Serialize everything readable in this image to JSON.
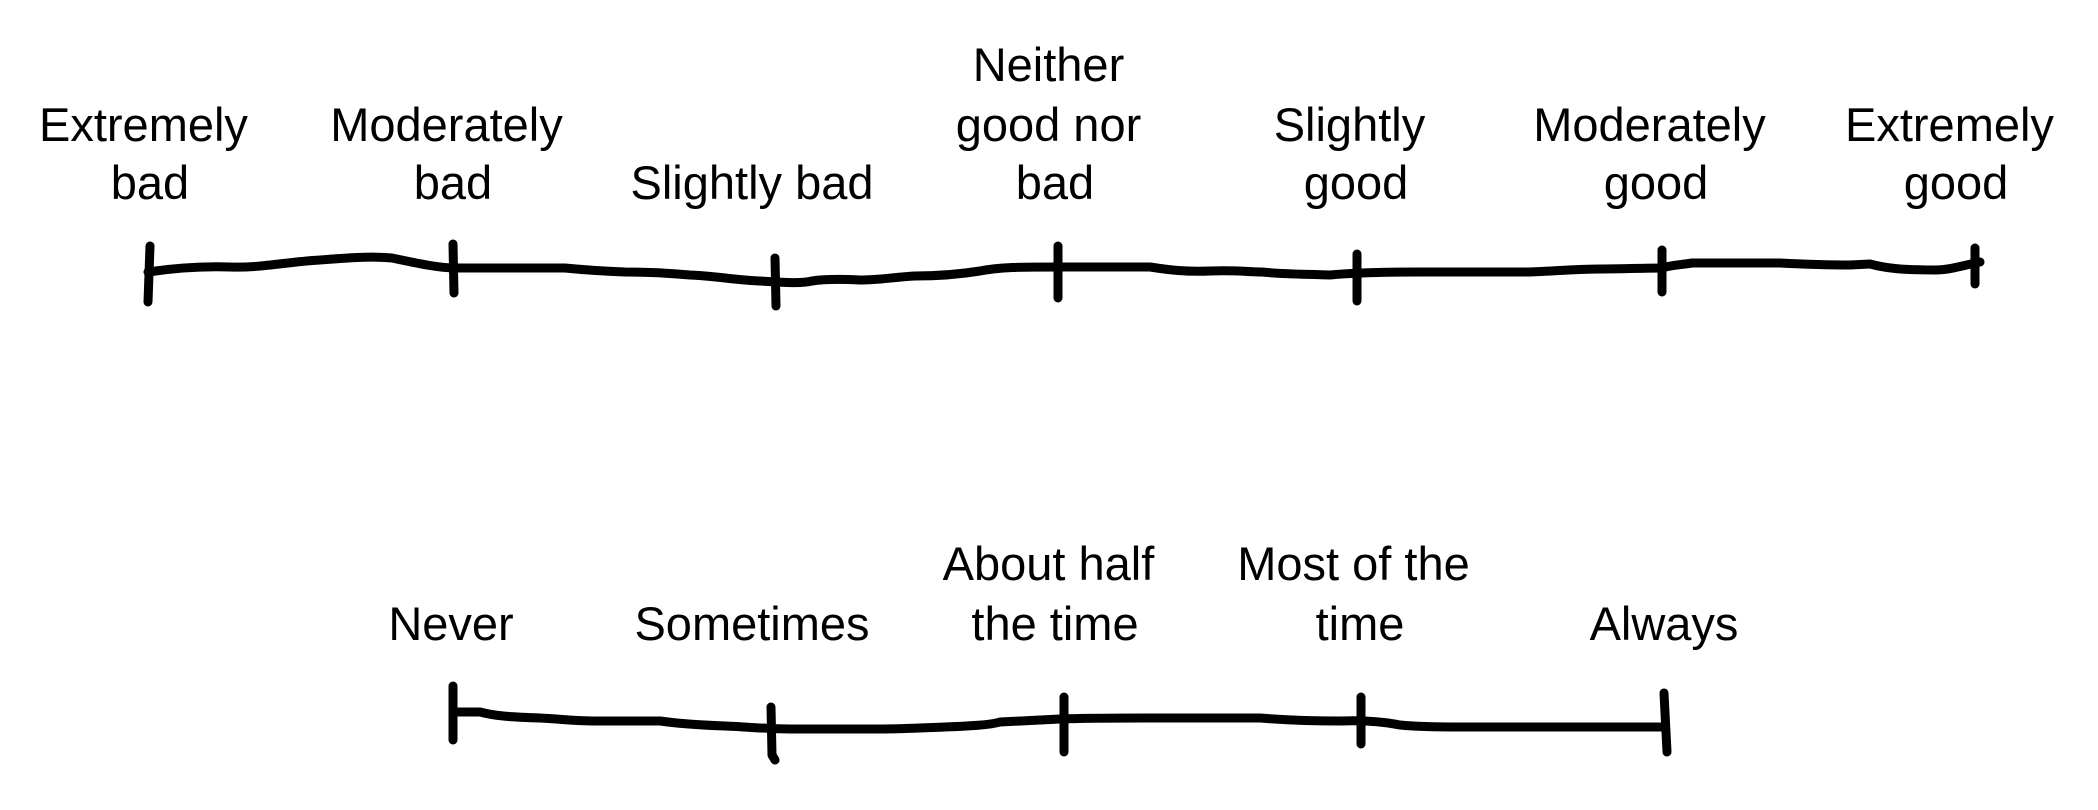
{
  "scales": [
    {
      "name": "quality-scale",
      "anchors": [
        {
          "lines": [
            "Extremely",
            "bad"
          ]
        },
        {
          "lines": [
            "Moderately",
            "bad"
          ]
        },
        {
          "lines": [
            "Slightly bad"
          ]
        },
        {
          "lines": [
            "Neither",
            "good nor",
            "bad"
          ]
        },
        {
          "lines": [
            "Slightly",
            "good"
          ]
        },
        {
          "lines": [
            "Moderately",
            "good"
          ]
        },
        {
          "lines": [
            "Extremely",
            "good"
          ]
        }
      ]
    },
    {
      "name": "frequency-scale",
      "anchors": [
        {
          "lines": [
            "Never"
          ]
        },
        {
          "lines": [
            "Sometimes"
          ]
        },
        {
          "lines": [
            "About half",
            "the time"
          ]
        },
        {
          "lines": [
            "Most of the",
            "time"
          ]
        },
        {
          "lines": [
            "Always"
          ]
        }
      ]
    }
  ]
}
